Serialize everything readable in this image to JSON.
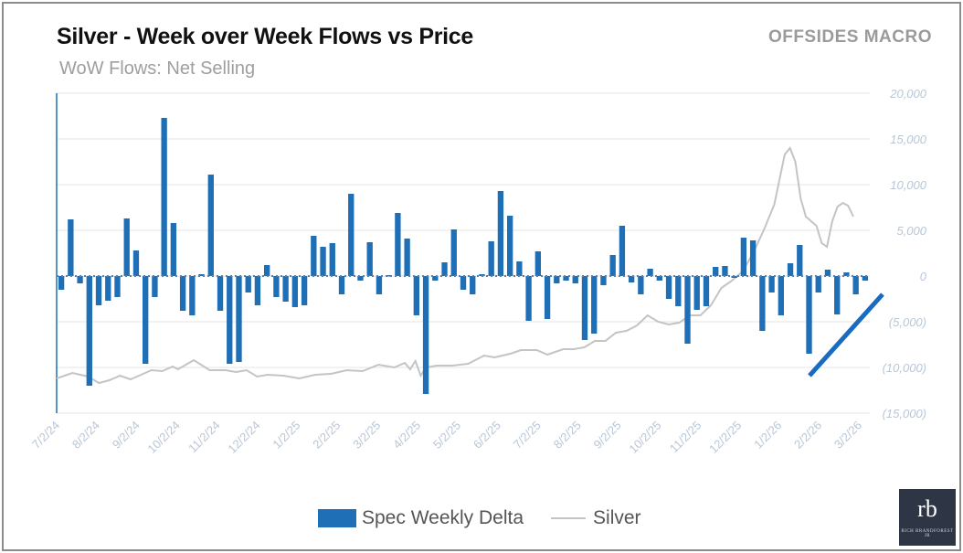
{
  "header": {
    "title": "Silver - Week over Week Flows vs Price",
    "subtitle": "WoW Flows: Net Selling",
    "brand": "OFFSIDES MACRO"
  },
  "legend": {
    "bar_label": "Spec Weekly Delta",
    "line_label": "Silver"
  },
  "logo": {
    "mark": "rb",
    "tagline": "RICH BRANDFOREST JR"
  },
  "colors": {
    "bar": "#1f6fb6",
    "line": "#c4c4c4",
    "annotation": "#1a6ac0",
    "grid": "#e4e4e4",
    "tick": "#b9c6d6"
  },
  "chart_data": {
    "type": "bar",
    "title": "Silver - Week over Week Flows vs Price",
    "subtitle": "WoW Flows: Net Selling",
    "y_right_ticks": [
      "20,000",
      "15,000",
      "10,000",
      "5,000",
      "0",
      "(5,000)",
      "(10,000)",
      "(15,000)"
    ],
    "ylim": [
      -15000,
      20000
    ],
    "x_tick_labels": [
      "7/2/24",
      "8/2/24",
      "9/2/24",
      "10/2/24",
      "11/2/24",
      "12/2/24",
      "1/2/25",
      "2/2/25",
      "3/2/25",
      "4/2/25",
      "5/2/25",
      "6/2/25",
      "7/2/25",
      "8/2/25",
      "9/2/25",
      "10/2/25",
      "11/2/25",
      "12/2/25",
      "1/2/26",
      "2/2/26",
      "3/2/26"
    ],
    "grid": "horizontal",
    "legend_position": "bottom",
    "series": [
      {
        "name": "Spec Weekly Delta",
        "type": "bar",
        "values": [
          -1500,
          6200,
          -800,
          -12000,
          -3200,
          -2700,
          -2300,
          6300,
          2800,
          -9600,
          -2300,
          17300,
          5800,
          -3800,
          -4300,
          200,
          11100,
          -3800,
          -9600,
          -9400,
          -1800,
          -3200,
          1200,
          -2300,
          -2800,
          -3400,
          -3200,
          4400,
          3200,
          3600,
          -2000,
          9000,
          -500,
          3700,
          -2000,
          100,
          6900,
          4100,
          -4300,
          -12900,
          -500,
          1500,
          5100,
          -1500,
          -2000,
          200,
          3800,
          9300,
          6600,
          1600,
          -4900,
          2700,
          -4700,
          -800,
          -500,
          -800,
          -7000,
          -6300,
          -1000,
          2300,
          5500,
          -700,
          -2000,
          800,
          -500,
          -2500,
          -3300,
          -7400,
          -3700,
          -3300,
          1000,
          1100,
          -200,
          4200,
          3900,
          -6000,
          -1800,
          -4300,
          1400,
          3400,
          -8500,
          -1800,
          700,
          -4200,
          400,
          -2000,
          -500
        ]
      },
      {
        "name": "Silver",
        "type": "line",
        "axis": "unlabeled left",
        "points": [
          [
            0,
            -11200
          ],
          [
            3,
            -10600
          ],
          [
            6,
            -11000
          ],
          [
            8,
            -11700
          ],
          [
            10,
            -11400
          ],
          [
            12,
            -10900
          ],
          [
            14,
            -11300
          ],
          [
            16,
            -10800
          ],
          [
            18,
            -10300
          ],
          [
            20,
            -10400
          ],
          [
            22,
            -9900
          ],
          [
            23,
            -10200
          ],
          [
            26,
            -9200
          ],
          [
            29,
            -10300
          ],
          [
            32,
            -10300
          ],
          [
            34,
            -10500
          ],
          [
            36,
            -10300
          ],
          [
            38,
            -11000
          ],
          [
            40,
            -10800
          ],
          [
            43,
            -10900
          ],
          [
            46,
            -11200
          ],
          [
            49,
            -10800
          ],
          [
            52,
            -10700
          ],
          [
            55,
            -10300
          ],
          [
            58,
            -10400
          ],
          [
            61,
            -9700
          ],
          [
            64,
            -10000
          ],
          [
            66,
            -9500
          ],
          [
            67,
            -10200
          ],
          [
            68,
            -9300
          ],
          [
            69,
            -10900
          ],
          [
            70,
            -10000
          ],
          [
            72,
            -9800
          ],
          [
            75,
            -9800
          ],
          [
            78,
            -9600
          ],
          [
            81,
            -8700
          ],
          [
            83,
            -8900
          ],
          [
            86,
            -8500
          ],
          [
            88,
            -8100
          ],
          [
            91,
            -8100
          ],
          [
            93,
            -8600
          ],
          [
            96,
            -8000
          ],
          [
            98,
            -8000
          ],
          [
            100,
            -7800
          ],
          [
            102,
            -7100
          ],
          [
            104,
            -7100
          ],
          [
            106,
            -6200
          ],
          [
            108,
            -6000
          ],
          [
            110,
            -5400
          ],
          [
            112,
            -4300
          ],
          [
            114,
            -5000
          ],
          [
            116,
            -5300
          ],
          [
            118,
            -5100
          ],
          [
            120,
            -4300
          ],
          [
            122,
            -4300
          ],
          [
            124,
            -3200
          ],
          [
            126,
            -1300
          ],
          [
            128,
            -500
          ],
          [
            130,
            500
          ],
          [
            132,
            2500
          ],
          [
            134,
            5000
          ],
          [
            136,
            7800
          ],
          [
            138,
            13300
          ],
          [
            139,
            14000
          ],
          [
            140,
            12500
          ],
          [
            141,
            8500
          ],
          [
            142,
            6500
          ],
          [
            143,
            6000
          ],
          [
            144,
            5500
          ],
          [
            145,
            3600
          ],
          [
            146,
            3200
          ],
          [
            147,
            6000
          ],
          [
            148,
            7600
          ],
          [
            149,
            8000
          ],
          [
            150,
            7700
          ],
          [
            151,
            6500
          ]
        ]
      }
    ]
  }
}
